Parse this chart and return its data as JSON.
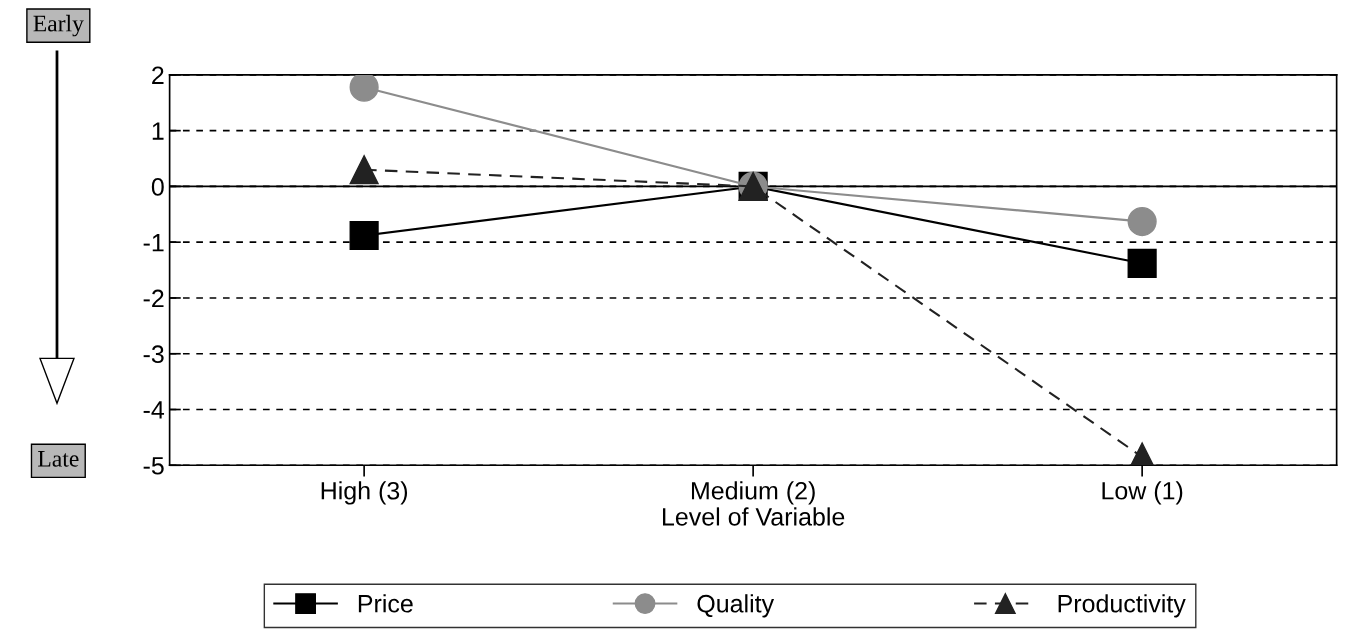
{
  "chart_data": {
    "type": "line",
    "xlabel": "Level of Variable",
    "categories": [
      "High (3)",
      "Medium (2)",
      "Low (1)"
    ],
    "series": [
      {
        "name": "Price",
        "color": "#000000",
        "values": [
          -0.88,
          0,
          -1.38
        ],
        "marker": "square",
        "line_style": "solid"
      },
      {
        "name": "Quality",
        "color": "#8c8c8c",
        "values": [
          1.78,
          0,
          -0.63
        ],
        "marker": "circle",
        "line_style": "solid"
      },
      {
        "name": "Productivity",
        "color": "#222222",
        "values": [
          0.3,
          0,
          -4.85
        ],
        "marker": "triangle",
        "line_style": "dashed"
      }
    ],
    "ylim": [
      -5,
      2
    ],
    "yticks": [
      -5,
      -4,
      -3,
      -2,
      -1,
      0,
      1,
      2
    ],
    "grid": "y",
    "legend": "bottom",
    "ref_lines": [
      {
        "axis": "y",
        "value": 0,
        "color": "#000000",
        "line_style": "solid"
      }
    ],
    "annotations": [
      "Early",
      "Late"
    ]
  }
}
